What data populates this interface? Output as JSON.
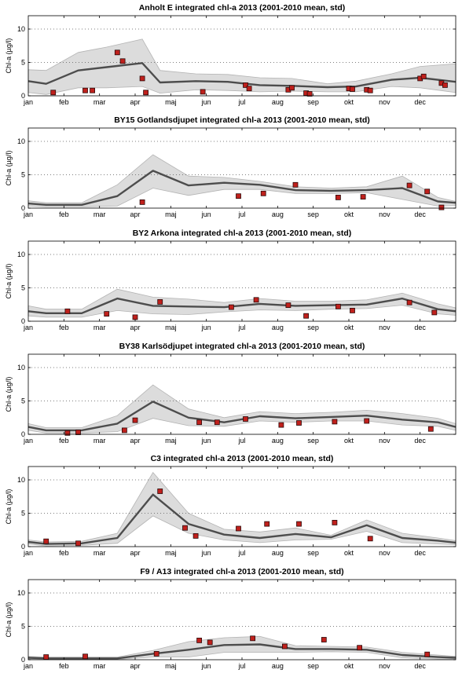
{
  "figure": {
    "months": [
      "jan",
      "feb",
      "mar",
      "apr",
      "maj",
      "jun",
      "jul",
      "aug",
      "sep",
      "okt",
      "nov",
      "dec"
    ],
    "ylabel": "Chl-a (µg/l)",
    "yticks": [
      0,
      5,
      10
    ],
    "colors": {
      "band": "#dcdcdc",
      "band_edge": "#b4b4b4",
      "mean_line": "#4d4d4d",
      "marker_fill": "#c0201c",
      "marker_edge": "#2a0a0a",
      "grid": "#555555"
    }
  },
  "chart_data": [
    {
      "type": "line",
      "title": "Anholt E integrated chl-a 2013 (2001-2010 mean, std)",
      "ylabel": "Chl-a (µg/l)",
      "ylim": [
        0,
        12
      ],
      "xlim": [
        0,
        12
      ],
      "grid": "horizontal dotted",
      "mean_x": [
        0,
        0.5,
        1.4,
        2.2,
        3.2,
        3.7,
        4.7,
        5.6,
        6.5,
        7.4,
        8.4,
        9.2,
        10.2,
        11.0,
        12.0
      ],
      "mean_y": [
        2.2,
        1.8,
        3.8,
        4.3,
        4.9,
        2.0,
        2.2,
        2.1,
        1.6,
        1.5,
        1.3,
        1.4,
        2.4,
        2.7,
        2.1
      ],
      "upper_y": [
        3.9,
        3.8,
        6.5,
        7.3,
        8.5,
        3.8,
        3.3,
        3.2,
        2.7,
        2.6,
        1.8,
        2.2,
        3.3,
        4.4,
        4.8
      ],
      "lower_y": [
        0.5,
        0.2,
        1.2,
        1.2,
        1.4,
        0.4,
        0.9,
        0.8,
        0.6,
        0.7,
        0.6,
        0.6,
        1.4,
        1.2,
        0.5
      ],
      "observations": [
        [
          0.7,
          0.5
        ],
        [
          1.6,
          0.8
        ],
        [
          1.8,
          0.8
        ],
        [
          2.5,
          6.5
        ],
        [
          2.65,
          5.2
        ],
        [
          3.2,
          2.6
        ],
        [
          3.3,
          0.5
        ],
        [
          4.9,
          0.6
        ],
        [
          6.1,
          1.6
        ],
        [
          6.2,
          1.1
        ],
        [
          7.3,
          0.9
        ],
        [
          7.4,
          1.2
        ],
        [
          7.8,
          0.4
        ],
        [
          7.9,
          0.3
        ],
        [
          9.0,
          1.1
        ],
        [
          9.1,
          1.0
        ],
        [
          9.5,
          0.9
        ],
        [
          9.6,
          0.8
        ],
        [
          11.0,
          2.6
        ],
        [
          11.1,
          2.9
        ],
        [
          11.6,
          1.9
        ],
        [
          11.7,
          1.6
        ]
      ]
    },
    {
      "type": "line",
      "title": "BY15 Gotlandsdjupet integrated chl-a 2013 (2001-2010 mean, std)",
      "ylabel": "Chl-a (µg/l)",
      "ylim": [
        0,
        12
      ],
      "xlim": [
        0,
        12
      ],
      "grid": "horizontal dotted",
      "mean_x": [
        0,
        0.5,
        1.5,
        2.5,
        3.5,
        4.5,
        5.5,
        6.5,
        7.5,
        8.5,
        9.5,
        10.5,
        11.5,
        12.0
      ],
      "mean_y": [
        0.7,
        0.5,
        0.5,
        1.8,
        5.6,
        3.4,
        3.8,
        3.5,
        2.7,
        2.6,
        2.7,
        3.0,
        1.0,
        0.8
      ],
      "upper_y": [
        1.1,
        0.8,
        0.8,
        3.5,
        8.0,
        4.8,
        4.6,
        4.0,
        3.2,
        3.0,
        3.2,
        4.8,
        1.6,
        1.0
      ],
      "lower_y": [
        0.3,
        0.2,
        0.2,
        0.3,
        3.0,
        1.9,
        2.8,
        2.8,
        2.2,
        2.2,
        2.3,
        1.3,
        0.3,
        0.4
      ],
      "observations": [
        [
          3.2,
          0.9
        ],
        [
          5.9,
          1.8
        ],
        [
          6.6,
          2.2
        ],
        [
          7.5,
          3.5
        ],
        [
          8.7,
          1.6
        ],
        [
          9.4,
          1.7
        ],
        [
          10.7,
          3.4
        ],
        [
          11.2,
          2.5
        ],
        [
          11.6,
          0.1
        ]
      ]
    },
    {
      "type": "line",
      "title": "BY2 Arkona integrated chl-a 2013 (2001-2010 mean, std)",
      "ylabel": "Chl-a (µg/l)",
      "ylim": [
        0,
        12
      ],
      "xlim": [
        0,
        12
      ],
      "grid": "horizontal dotted",
      "mean_x": [
        0,
        0.5,
        1.5,
        2.5,
        3.5,
        4.5,
        5.5,
        6.5,
        7.5,
        8.5,
        9.5,
        10.5,
        11.5,
        12.0
      ],
      "mean_y": [
        1.5,
        1.2,
        1.2,
        3.4,
        2.3,
        2.2,
        2.1,
        2.6,
        2.3,
        2.4,
        2.5,
        3.4,
        1.8,
        1.5
      ],
      "upper_y": [
        2.3,
        1.8,
        1.8,
        4.8,
        3.6,
        3.3,
        2.8,
        3.4,
        3.0,
        3.0,
        3.2,
        4.2,
        2.6,
        2.0
      ],
      "lower_y": [
        0.8,
        0.6,
        0.6,
        1.6,
        1.1,
        1.0,
        1.4,
        1.7,
        1.6,
        1.8,
        1.9,
        2.4,
        1.1,
        0.9
      ],
      "observations": [
        [
          1.1,
          1.5
        ],
        [
          2.2,
          1.1
        ],
        [
          3.0,
          0.6
        ],
        [
          3.7,
          2.9
        ],
        [
          5.7,
          2.1
        ],
        [
          6.4,
          3.2
        ],
        [
          7.3,
          2.4
        ],
        [
          7.8,
          0.8
        ],
        [
          8.7,
          2.2
        ],
        [
          9.1,
          1.6
        ],
        [
          10.7,
          2.8
        ],
        [
          11.4,
          1.3
        ]
      ]
    },
    {
      "type": "line",
      "title": "BY38 Karlsödjupet integrated chl-a 2013 (2001-2010 mean, std)",
      "ylabel": "Chl-a (µg/l)",
      "ylim": [
        0,
        12
      ],
      "xlim": [
        0,
        12
      ],
      "grid": "horizontal dotted",
      "mean_x": [
        0,
        0.5,
        1.5,
        2.5,
        3.5,
        4.5,
        5.5,
        6.5,
        7.5,
        8.5,
        9.5,
        10.5,
        11.5,
        12.0
      ],
      "mean_y": [
        1.1,
        0.6,
        0.6,
        1.6,
        4.9,
        2.5,
        1.8,
        2.7,
        2.4,
        2.6,
        2.8,
        2.2,
        1.8,
        1.1
      ],
      "upper_y": [
        1.6,
        1.0,
        1.0,
        2.8,
        7.4,
        3.8,
        2.5,
        3.4,
        3.1,
        3.3,
        3.6,
        3.1,
        2.4,
        1.6
      ],
      "lower_y": [
        0.6,
        0.2,
        0.2,
        0.4,
        2.4,
        1.3,
        1.2,
        2.0,
        1.8,
        2.0,
        2.0,
        1.4,
        1.2,
        0.6
      ],
      "observations": [
        [
          1.1,
          0.2
        ],
        [
          1.4,
          0.3
        ],
        [
          2.7,
          0.6
        ],
        [
          3.0,
          2.1
        ],
        [
          4.8,
          1.8
        ],
        [
          5.3,
          1.8
        ],
        [
          6.1,
          2.3
        ],
        [
          7.1,
          1.4
        ],
        [
          7.6,
          1.7
        ],
        [
          8.6,
          1.9
        ],
        [
          9.5,
          2.0
        ],
        [
          11.3,
          0.8
        ]
      ]
    },
    {
      "type": "line",
      "title": "C3 integrated chl-a 2013 (2001-2010 mean, std)",
      "ylabel": "Chl-a (µg/l)",
      "ylim": [
        0,
        12
      ],
      "xlim": [
        0,
        12
      ],
      "grid": "horizontal dotted",
      "mean_x": [
        0,
        0.5,
        1.5,
        2.5,
        3.5,
        4.5,
        5.5,
        6.5,
        7.5,
        8.5,
        9.5,
        10.5,
        11.5,
        12.0
      ],
      "mean_y": [
        0.7,
        0.4,
        0.5,
        1.3,
        7.8,
        3.4,
        1.8,
        1.3,
        1.9,
        1.4,
        3.2,
        1.3,
        0.9,
        0.6
      ],
      "upper_y": [
        1.0,
        0.7,
        0.8,
        2.0,
        11.1,
        5.0,
        2.6,
        2.2,
        2.8,
        1.7,
        4.0,
        2.0,
        1.3,
        0.9
      ],
      "lower_y": [
        0.4,
        0.1,
        0.2,
        0.5,
        4.6,
        2.0,
        1.0,
        0.6,
        1.0,
        1.1,
        2.3,
        0.6,
        0.4,
        0.3
      ],
      "observations": [
        [
          0.5,
          0.8
        ],
        [
          1.4,
          0.5
        ],
        [
          3.7,
          8.3
        ],
        [
          4.4,
          2.8
        ],
        [
          4.7,
          1.6
        ],
        [
          5.9,
          2.7
        ],
        [
          6.7,
          3.4
        ],
        [
          7.6,
          3.4
        ],
        [
          8.6,
          3.6
        ],
        [
          9.6,
          1.2
        ]
      ]
    },
    {
      "type": "line",
      "title": "F9 / A13 integrated chl-a 2013 (2001-2010 mean, std)",
      "ylabel": "Chl-a (µg/l)",
      "ylim": [
        0,
        12
      ],
      "xlim": [
        0,
        12
      ],
      "grid": "horizontal dotted",
      "mean_x": [
        0,
        0.5,
        1.5,
        2.5,
        3.5,
        4.5,
        5.5,
        6.5,
        7.5,
        8.5,
        9.5,
        10.5,
        11.5,
        12.0
      ],
      "mean_y": [
        0.3,
        0.2,
        0.2,
        0.2,
        0.9,
        1.5,
        2.2,
        2.3,
        1.6,
        1.6,
        1.5,
        0.7,
        0.4,
        0.3
      ],
      "upper_y": [
        0.5,
        0.4,
        0.4,
        0.4,
        1.4,
        2.7,
        3.3,
        3.5,
        2.1,
        2.0,
        1.9,
        1.1,
        0.7,
        0.5
      ],
      "lower_y": [
        0.1,
        0.05,
        0.05,
        0.05,
        0.4,
        0.4,
        1.1,
        1.1,
        1.1,
        1.2,
        1.1,
        0.3,
        0.1,
        0.1
      ],
      "observations": [
        [
          0.5,
          0.4
        ],
        [
          1.6,
          0.5
        ],
        [
          3.6,
          0.9
        ],
        [
          4.8,
          2.9
        ],
        [
          5.1,
          2.6
        ],
        [
          6.3,
          3.2
        ],
        [
          7.2,
          2.0
        ],
        [
          8.3,
          3.0
        ],
        [
          9.3,
          1.8
        ],
        [
          11.2,
          0.8
        ]
      ]
    }
  ]
}
